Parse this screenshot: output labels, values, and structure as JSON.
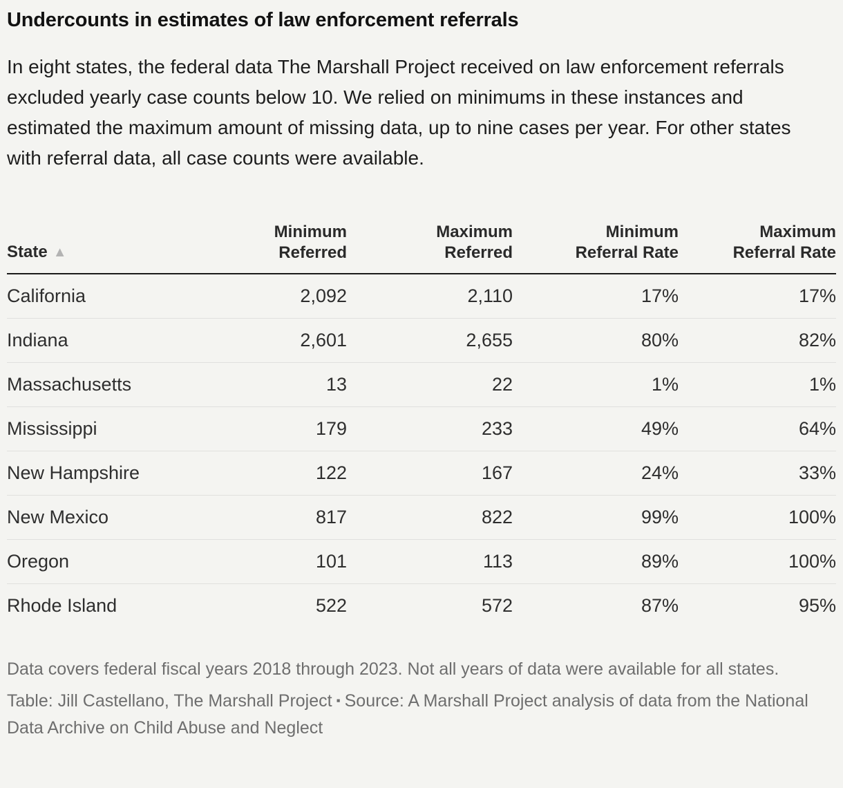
{
  "header": {
    "title": "Undercounts in estimates of law enforcement referrals",
    "description": "In eight states, the federal data The Marshall Project received on law enforcement referrals excluded yearly case counts below 10. We relied on minimums in these instances and estimated the maximum amount of missing data, up to nine cases per year. For other states with referral data, all case counts were available."
  },
  "table": {
    "sort_indicator": "▲",
    "columns": [
      {
        "label": "State",
        "align": "left",
        "sorted_ascending": true
      },
      {
        "label": "Minimum\nReferred",
        "align": "right"
      },
      {
        "label": "Maximum\nReferred",
        "align": "right"
      },
      {
        "label": "Minimum\nReferral Rate",
        "align": "right"
      },
      {
        "label": "Maximum\nReferral Rate",
        "align": "right"
      }
    ]
  },
  "chart_data": {
    "type": "table",
    "title": "Undercounts in estimates of law enforcement referrals",
    "columns": [
      "State",
      "Minimum Referred",
      "Maximum Referred",
      "Minimum Referral Rate",
      "Maximum Referral Rate"
    ],
    "rows": [
      [
        "California",
        "2,092",
        "2,110",
        "17%",
        "17%"
      ],
      [
        "Indiana",
        "2,601",
        "2,655",
        "80%",
        "82%"
      ],
      [
        "Massachusetts",
        "13",
        "22",
        "1%",
        "1%"
      ],
      [
        "Mississippi",
        "179",
        "233",
        "49%",
        "64%"
      ],
      [
        "New Hampshire",
        "122",
        "167",
        "24%",
        "33%"
      ],
      [
        "New Mexico",
        "817",
        "822",
        "99%",
        "100%"
      ],
      [
        "Oregon",
        "101",
        "113",
        "89%",
        "100%"
      ],
      [
        "Rhode Island",
        "522",
        "572",
        "87%",
        "95%"
      ]
    ],
    "rows_numeric": [
      {
        "state": "California",
        "min_referred": 2092,
        "max_referred": 2110,
        "min_referral_rate_pct": 17,
        "max_referral_rate_pct": 17
      },
      {
        "state": "Indiana",
        "min_referred": 2601,
        "max_referred": 2655,
        "min_referral_rate_pct": 80,
        "max_referral_rate_pct": 82
      },
      {
        "state": "Massachusetts",
        "min_referred": 13,
        "max_referred": 22,
        "min_referral_rate_pct": 1,
        "max_referral_rate_pct": 1
      },
      {
        "state": "Mississippi",
        "min_referred": 179,
        "max_referred": 233,
        "min_referral_rate_pct": 49,
        "max_referral_rate_pct": 64
      },
      {
        "state": "New Hampshire",
        "min_referred": 122,
        "max_referred": 167,
        "min_referral_rate_pct": 24,
        "max_referral_rate_pct": 33
      },
      {
        "state": "New Mexico",
        "min_referred": 817,
        "max_referred": 822,
        "min_referral_rate_pct": 99,
        "max_referral_rate_pct": 100
      },
      {
        "state": "Oregon",
        "min_referred": 101,
        "max_referred": 113,
        "min_referral_rate_pct": 89,
        "max_referral_rate_pct": 100
      },
      {
        "state": "Rhode Island",
        "min_referred": 522,
        "max_referred": 572,
        "min_referral_rate_pct": 87,
        "max_referral_rate_pct": 95
      }
    ]
  },
  "footer": {
    "note": "Data covers federal fiscal years 2018 through 2023. Not all years of data were available for all states.",
    "credit": "Table: Jill Castellano, The Marshall Project",
    "separator": "▪",
    "source": "Source: A Marshall Project analysis of data from the National Data Archive on Child Abuse and Neglect"
  },
  "colors": {
    "background": "#f4f4f1",
    "title_text": "#121212",
    "body_text": "#1d1d1d",
    "cell_text": "#2e2e2e",
    "header_rule": "#1a1a1a",
    "row_divider": "#e0e0de",
    "note_text": "#6e6e6e",
    "sort_arrow": "#b3b3b3"
  }
}
